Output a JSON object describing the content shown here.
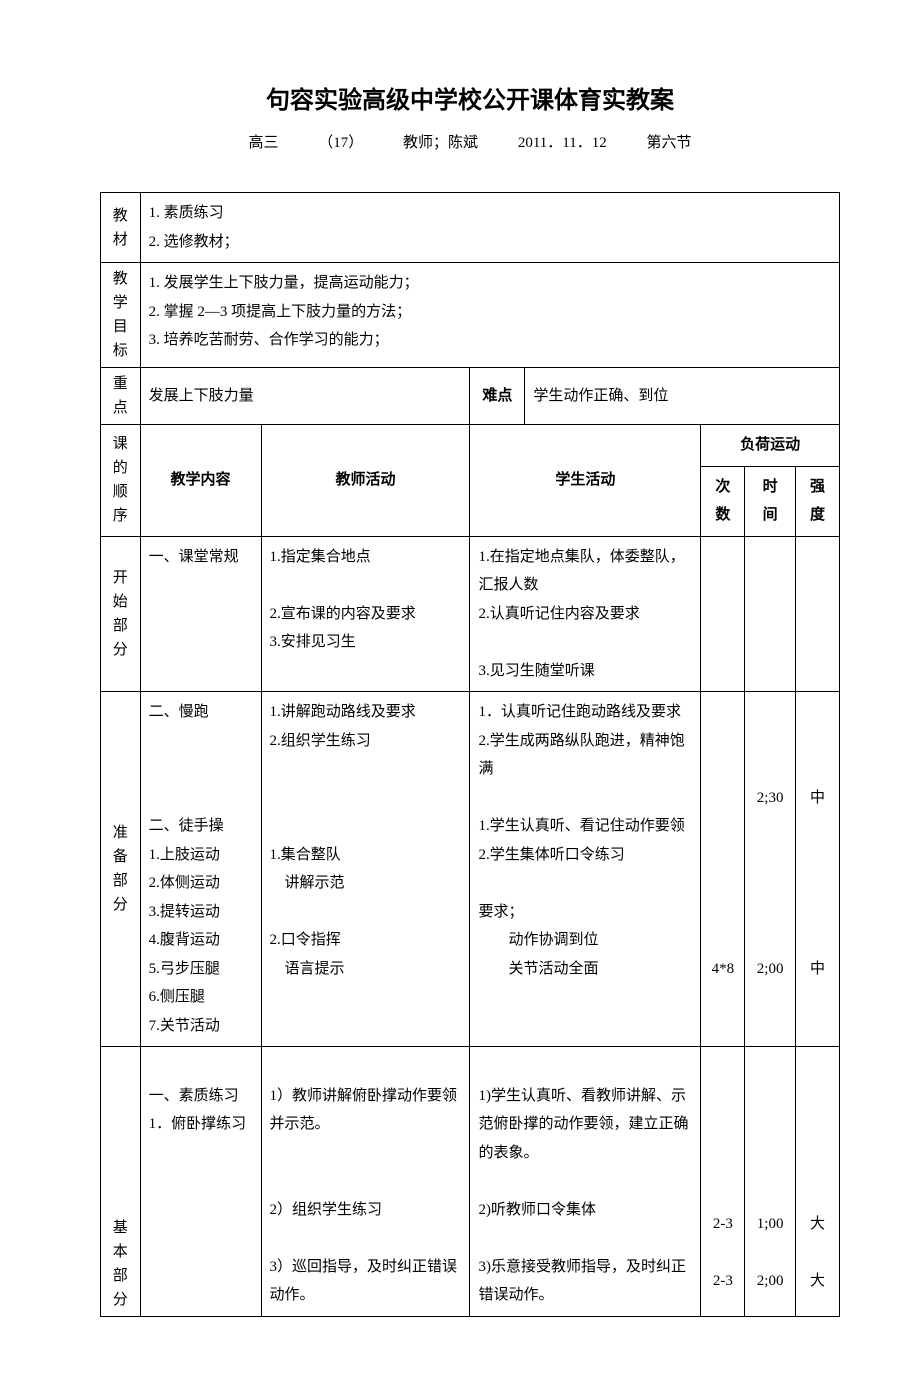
{
  "title": "句容实验高级中学校公开课体育实教案",
  "subtitle": {
    "grade": "高三",
    "class_no": "（17）",
    "teacher_label": "教师；陈斌",
    "date": "2011．11．12",
    "period": "第六节"
  },
  "labels": {
    "material": "教\n材",
    "goals": "教\n学\n目\n标",
    "focus": "重\n点",
    "difficulty": "难点",
    "sequence": "课\n的\n顺\n序",
    "start": "开\n始\n部\n分",
    "prep": "准\n备\n部\n分",
    "basic": "基\n本\n部\n分"
  },
  "headers": {
    "teaching_content": "教学内容",
    "teacher_activity": "教师活动",
    "student_activity": "学生活动",
    "load": "负荷运动",
    "count": "次\n数",
    "time": "时\n间",
    "intensity": "强\n度"
  },
  "material_text": "1. 素质练习\n2. 选修教材；",
  "goals_text": "1. 发展学生上下肢力量，提高运动能力；\n2. 掌握 2—3 项提高上下肢力量的方法；\n3. 培养吃苦耐劳、合作学习的能力；",
  "focus_text": "发展上下肢力量",
  "difficulty_text": "学生动作正确、到位",
  "start_section": {
    "content": "一、课堂常规",
    "teacher": "1.指定集合地点\n\n2.宣布课的内容及要求\n3.安排见习生",
    "student": "1.在指定地点集队，体委整队，汇报人数\n2.认真听记住内容及要求\n\n3.见习生随堂听课",
    "count": "",
    "time": "",
    "intensity": ""
  },
  "prep_section": {
    "content": "二、慢跑\n\n\n\n二、徒手操\n1.上肢运动\n2.体侧运动\n3.提转运动\n4.腹背运动\n5.弓步压腿\n6.侧压腿\n7.关节活动",
    "teacher": "1.讲解跑动路线及要求\n2.组织学生练习\n\n\n\n1.集合整队\n　讲解示范\n\n2.口令指挥\n　语言提示",
    "student": "1．认真听记住跑动路线及要求\n2.学生成两路纵队跑进，精神饱满\n\n1.学生认真听、看记住动作要领\n2.学生集体听口令练习\n\n要求；\n　　动作协调到位\n　　关节活动全面",
    "count": "\n\n\n\n\n\n\n4*8",
    "time": "\n2;30\n\n\n\n\n\n2;00",
    "intensity": "\n中\n\n\n\n\n\n中"
  },
  "basic_section": {
    "content": "\n一、素质练习\n1．俯卧撑练习",
    "teacher": "\n1）教师讲解俯卧撑动作要领并示范。\n\n\n2）组织学生练习\n\n3）巡回指导，及时纠正错误动作。",
    "student": "\n1)学生认真听、看教师讲解、示范俯卧撑的动作要领，建立正确的表象。\n\n2)听教师口令集体\n\n3)乐意接受教师指导，及时纠正错误动作。",
    "count": "\n\n\n\n\n2-3\n\n2-3",
    "time": "\n\n\n\n\n1;00\n\n2;00",
    "intensity": "\n\n\n\n\n大\n\n大"
  }
}
